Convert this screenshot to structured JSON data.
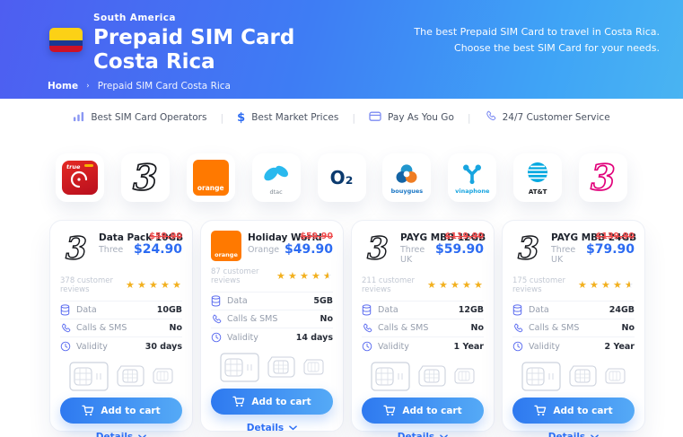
{
  "header": {
    "region": "South America",
    "title": "Prepaid SIM Card Costa Rica",
    "tagline_line1": "The best Prepaid SIM Card to travel in Costa Rica.",
    "tagline_line2": "Choose the best SIM Card for your needs.",
    "breadcrumb": {
      "home": "Home",
      "separator": "›",
      "current": "Prepaid SIM Card Costa Rica"
    }
  },
  "features": [
    {
      "label": "Best SIM Card Operators",
      "icon": "bar-chart-icon"
    },
    {
      "label": "Best Market Prices",
      "icon": "dollar-icon",
      "symbol": "$"
    },
    {
      "label": "Pay As You Go",
      "icon": "credit-card-icon"
    },
    {
      "label": "24/7 Customer Service",
      "icon": "phone-icon"
    }
  ],
  "feature_separator": "|",
  "operators": [
    {
      "name": "True",
      "short": "true"
    },
    {
      "name": "Three",
      "short": "3"
    },
    {
      "name": "Orange",
      "short": "orange"
    },
    {
      "name": "dtac",
      "short": "dtac"
    },
    {
      "name": "O2",
      "short": "O₂"
    },
    {
      "name": "Bouygues",
      "short": "bouygues"
    },
    {
      "name": "Vinaphone",
      "short": "vinaphone"
    },
    {
      "name": "AT&T",
      "short": "AT&T"
    },
    {
      "name": "Three UK",
      "short": "3"
    }
  ],
  "spec_labels": {
    "data": "Data",
    "calls": "Calls & SMS",
    "validity": "Validity"
  },
  "buttons": {
    "add_to_cart": "Add to cart",
    "details": "Details"
  },
  "cards": [
    {
      "name": "Data Pack 10GB",
      "operator": "Three",
      "old_price": "$59.90",
      "price": "$24.90",
      "reviews": "378 customer reviews",
      "rating": 5,
      "data": "10GB",
      "calls": "No",
      "validity": "30 days"
    },
    {
      "name": "Holiday World",
      "operator": "Orange",
      "old_price": "$59.90",
      "price": "$49.90",
      "reviews": "87 customer reviews",
      "rating": 4.5,
      "data": "5GB",
      "calls": "No",
      "validity": "14 days"
    },
    {
      "name": "PAYG MBB 12GB",
      "operator": "Three UK",
      "old_price": "$119.90",
      "price": "$59.90",
      "reviews": "211 customer reviews",
      "rating": 5,
      "data": "12GB",
      "calls": "No",
      "validity": "1 Year"
    },
    {
      "name": "PAYG MBB 24GB",
      "operator": "Three UK",
      "old_price": "$139.90",
      "price": "$79.90",
      "reviews": "175 customer reviews",
      "rating": 4.5,
      "data": "24GB",
      "calls": "No",
      "validity": "2 Year"
    }
  ],
  "colors": {
    "header_gradient_start": "#4e5ef1",
    "header_gradient_end": "#49b4f2",
    "accent_blue": "#2c6bf2",
    "price_old_red": "#ee4b4c",
    "star_gold": "#f2b01e"
  }
}
